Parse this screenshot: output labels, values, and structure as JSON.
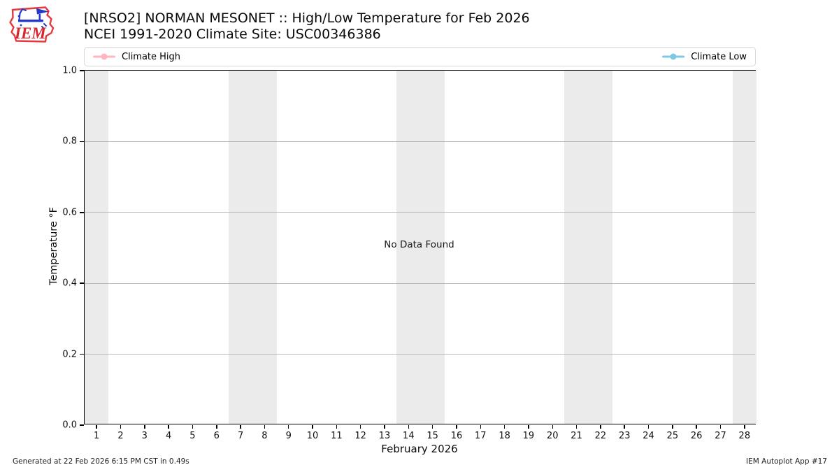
{
  "header": {
    "logo_text": "IEM",
    "title_line1": "[NRSO2] NORMAN MESONET :: High/Low Temperature for Feb 2026",
    "title_line2": "NCEI 1991-2020 Climate Site: USC00346386"
  },
  "legend": {
    "entries": [
      {
        "label": "Climate High",
        "color": "#ffb6c1"
      },
      {
        "label": "Climate Low",
        "color": "#7ec8e3"
      }
    ]
  },
  "chart_data": {
    "type": "line",
    "title": "[NRSO2] NORMAN MESONET :: High/Low Temperature for Feb 2026",
    "subtitle": "NCEI 1991-2020 Climate Site: USC00346386",
    "xlabel": "February 2026",
    "ylabel": "Temperature °F",
    "xlim": [
      0.5,
      28.5
    ],
    "ylim": [
      0.0,
      1.0
    ],
    "xticks": [
      1,
      2,
      3,
      4,
      5,
      6,
      7,
      8,
      9,
      10,
      11,
      12,
      13,
      14,
      15,
      16,
      17,
      18,
      19,
      20,
      21,
      22,
      23,
      24,
      25,
      26,
      27,
      28
    ],
    "yticks": [
      0.0,
      0.2,
      0.4,
      0.6,
      0.8,
      1.0
    ],
    "ytick_labels": [
      "0.0",
      "0.2",
      "0.4",
      "0.6",
      "0.8",
      "1.0"
    ],
    "grid": "horizontal",
    "grid_color": "#b9b9b9",
    "legend_position": "top-expand",
    "series": [
      {
        "name": "Climate High",
        "color": "#ffb6c1",
        "x": [],
        "values": []
      },
      {
        "name": "Climate Low",
        "color": "#7ec8e3",
        "x": [],
        "values": []
      }
    ],
    "no_data_message": "No Data Found",
    "weekend_shading": {
      "color": "#ebebeb",
      "intervals": [
        [
          0.5,
          1.5
        ],
        [
          6.5,
          8.5
        ],
        [
          13.5,
          15.5
        ],
        [
          20.5,
          22.5
        ],
        [
          27.5,
          28.5
        ]
      ]
    }
  },
  "footer": {
    "left": "Generated at 22 Feb 2026 6:15 PM CST in 0.49s",
    "right": "IEM Autoplot App #17"
  }
}
